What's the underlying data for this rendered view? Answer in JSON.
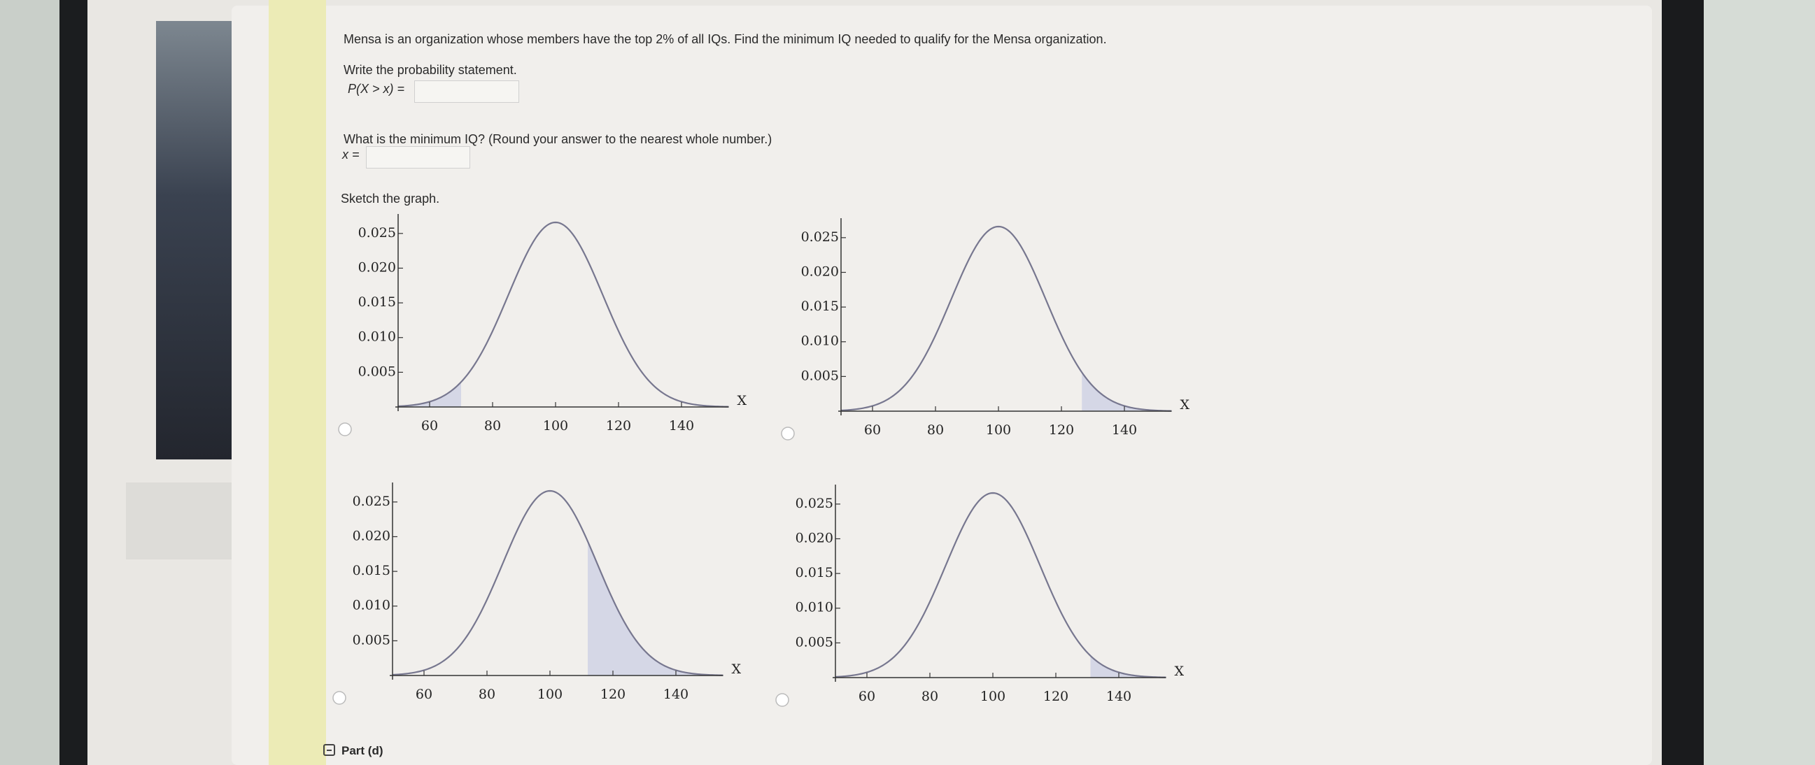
{
  "question": "Mensa is an organization whose members have the top 2% of all IQs. Find the minimum IQ needed to qualify for the Mensa organization.",
  "prompt_probability": "Write the probability statement.",
  "probability_label": "P(X > x) =",
  "prompt_minimum": "What is the minimum IQ? (Round your answer to the nearest whole number.)",
  "minimum_label": "x =",
  "sketch_label": "Sketch the graph.",
  "chart_data": [
    {
      "type": "normal",
      "mean": 100,
      "sd": 15,
      "shade": [
        50,
        70
      ],
      "xlim": [
        50,
        155
      ],
      "ylim": [
        0,
        0.027
      ],
      "xticks": [
        60,
        80,
        100,
        120,
        140
      ],
      "yticks": [
        {
          "value": 0.005,
          "label": "0.005"
        },
        {
          "value": 0.01,
          "label": "0.010"
        },
        0.015,
        {
          "value": 0.02,
          "label": "0.020"
        },
        0.025
      ],
      "xlabel": "X",
      "color": "#77778f",
      "shade_color": "#d5d7e6"
    },
    {
      "type": "normal",
      "mean": 100,
      "sd": 15,
      "shade": [
        126.5,
        155
      ],
      "xlim": [
        50,
        155
      ],
      "ylim": [
        0,
        0.027
      ],
      "xticks": [
        60,
        80,
        100,
        120,
        140
      ],
      "yticks": [
        {
          "value": 0.005,
          "label": "0.005"
        },
        {
          "value": 0.01,
          "label": "0.010"
        },
        0.015,
        {
          "value": 0.02,
          "label": "0.020"
        },
        0.025
      ],
      "xlabel": "X",
      "color": "#77778f",
      "shade_color": "#d5d7e6"
    },
    {
      "type": "normal",
      "mean": 100,
      "sd": 15,
      "shade": [
        112,
        155
      ],
      "xlim": [
        50,
        155
      ],
      "ylim": [
        0,
        0.027
      ],
      "xticks": [
        60,
        80,
        100,
        120,
        140
      ],
      "yticks": [
        {
          "value": 0.005,
          "label": "0.005"
        },
        {
          "value": 0.01,
          "label": "0.010"
        },
        0.015,
        {
          "value": 0.02,
          "label": "0.020"
        },
        0.025
      ],
      "xlabel": "X",
      "color": "#77778f",
      "shade_color": "#d5d7e6"
    },
    {
      "type": "normal",
      "mean": 100,
      "sd": 15,
      "shade": [
        131,
        155
      ],
      "xlim": [
        50,
        155
      ],
      "ylim": [
        0,
        0.027
      ],
      "xticks": [
        60,
        80,
        100,
        120,
        140
      ],
      "yticks": [
        {
          "value": 0.005,
          "label": "0.005"
        },
        {
          "value": 0.01,
          "label": "0.010"
        },
        0.015,
        {
          "value": 0.02,
          "label": "0.020"
        },
        0.025
      ],
      "xlabel": "X",
      "color": "#77778f",
      "shade_color": "#d5d7e6"
    }
  ],
  "part_label": "Part (d)"
}
